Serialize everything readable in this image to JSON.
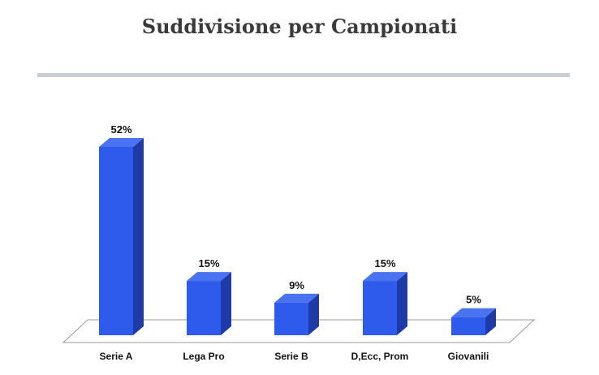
{
  "title": "Suddivisione per Campionati",
  "colors": {
    "bar_front": "#2e5bec",
    "bar_side": "#1e3aa6",
    "bar_top": "#4a73f2",
    "floor": "#ffffff",
    "floor_stroke": "#9a9a9a"
  },
  "chart_data": {
    "type": "bar",
    "title": "Suddivisione per Campionati",
    "categories": [
      "Serie A",
      "Lega Pro",
      "Serie B",
      "D,Ecc, Prom",
      "Giovanili"
    ],
    "values": [
      52,
      15,
      9,
      15,
      5
    ],
    "value_labels": [
      "52%",
      "15%",
      "9%",
      "15%",
      "5%"
    ],
    "unit": "%",
    "xlabel": "",
    "ylabel": "",
    "ylim": [
      0,
      52
    ],
    "grid": false,
    "legend": "none"
  }
}
